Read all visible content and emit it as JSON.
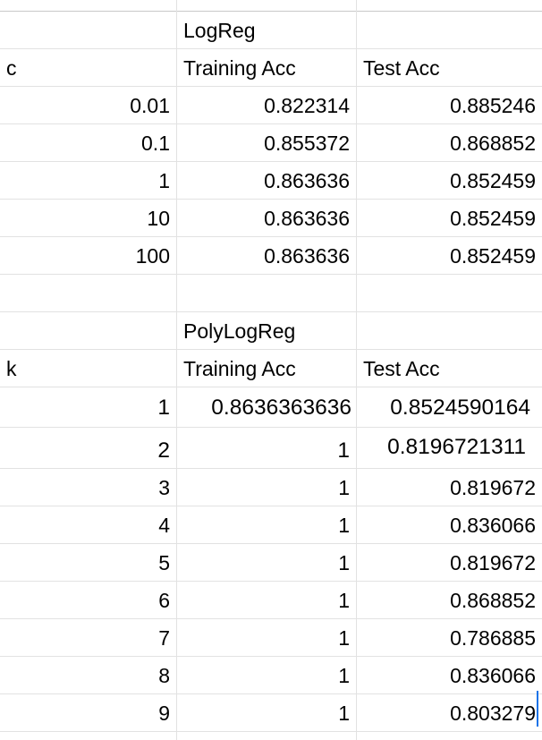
{
  "section1": {
    "model_name": "LogReg",
    "header": {
      "param": "c",
      "train": "Training Acc",
      "test": "Test Acc"
    },
    "rows": [
      {
        "param": "0.01",
        "train": "0.822314",
        "test": "0.885246"
      },
      {
        "param": "0.1",
        "train": "0.855372",
        "test": "0.868852"
      },
      {
        "param": "1",
        "train": "0.863636",
        "test": "0.852459"
      },
      {
        "param": "10",
        "train": "0.863636",
        "test": "0.852459"
      },
      {
        "param": "100",
        "train": "0.863636",
        "test": "0.852459"
      }
    ]
  },
  "section2": {
    "model_name": "PolyLogReg",
    "header": {
      "param": "k",
      "train": "Training Acc",
      "test": "Test Acc"
    },
    "rows": [
      {
        "param": "1",
        "train": "0.8636363636",
        "test": "0.8524590164"
      },
      {
        "param": "2",
        "train": "1",
        "test": "0.8196721311"
      },
      {
        "param": "3",
        "train": "1",
        "test": "0.819672"
      },
      {
        "param": "4",
        "train": "1",
        "test": "0.836066"
      },
      {
        "param": "5",
        "train": "1",
        "test": "0.819672"
      },
      {
        "param": "6",
        "train": "1",
        "test": "0.868852"
      },
      {
        "param": "7",
        "train": "1",
        "test": "0.786885"
      },
      {
        "param": "8",
        "train": "1",
        "test": "0.836066"
      },
      {
        "param": "9",
        "train": "1",
        "test": "0.803279"
      }
    ]
  },
  "colors": {
    "gridline": "#e2e2e2",
    "selection_border": "#1a73e8",
    "text": "#000000"
  }
}
